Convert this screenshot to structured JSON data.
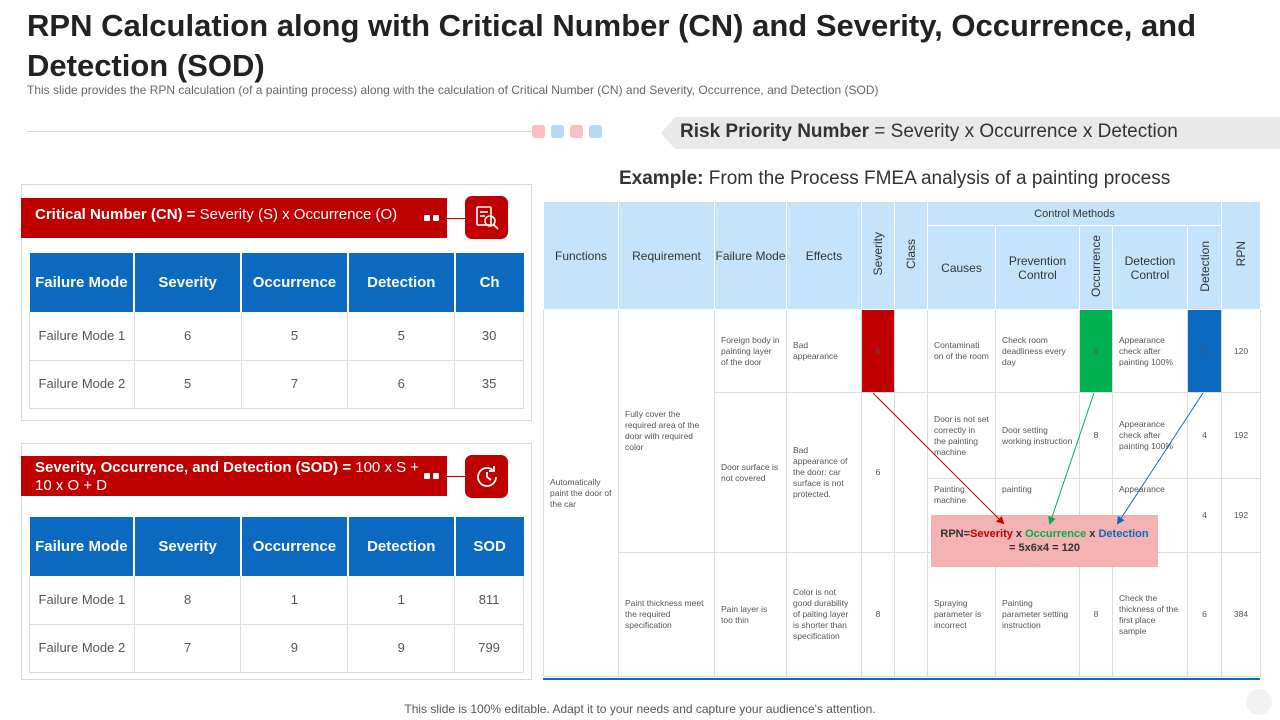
{
  "title": "RPN Calculation along with Critical Number (CN) and Severity, Occurrence, and Detection (SOD)",
  "subtitle": "This slide provides  the RPN calculation  (of a painting process)  along with the calculation of Critical Number  (CN)  and Severity,  Occurrence,  and Detection (SOD)",
  "dots": [
    "#f8c0c4",
    "#b8d8f4",
    "#f8c0c4",
    "#b8d8f4"
  ],
  "rpn_banner": {
    "bold": "Risk Priority Number",
    "rest": " = Severity x Occurrence x Detection"
  },
  "example": {
    "bold": "Example:",
    "rest": " From the Process FMEA analysis of a painting process"
  },
  "cn": {
    "bar_bold": "Critical Number (CN) =",
    "bar_rest": " Severity (S) x Occurrence (O)",
    "icon": "analysis-icon",
    "headers": [
      "Failure Mode",
      "Severity",
      "Occurrence",
      "Detection",
      "Ch"
    ],
    "rows": [
      [
        "Failure Mode 1",
        "6",
        "5",
        "5",
        "30"
      ],
      [
        "Failure Mode 2",
        "5",
        "7",
        "6",
        "35"
      ]
    ]
  },
  "sod": {
    "bar_bold": "Severity, Occurrence, and Detection (SOD) =",
    "bar_rest": " 100 x S + 10 x O + D",
    "icon": "refresh-clock-icon",
    "headers": [
      "Failure Mode",
      "Severity",
      "Occurrence",
      "Detection",
      "SOD"
    ],
    "rows": [
      [
        "Failure Mode 1",
        "8",
        "1",
        "1",
        "811"
      ],
      [
        "Failure Mode 2",
        "7",
        "9",
        "9",
        "799"
      ]
    ]
  },
  "fmea": {
    "headers": {
      "functions": "Functions",
      "requirement": "Requirement",
      "failure_mode": "Failure Mode",
      "effects": "Effects",
      "severity": "Severity",
      "class": "Class",
      "control_methods": "Control Methods",
      "causes": "Causes",
      "prevention_control": "Prevention Control",
      "occurrence": "Occurrence",
      "detection_control": "Detection Control",
      "detection": "Detection",
      "rpn": "RPN"
    },
    "function_text": "Automatically paint the door of the car",
    "req_1": "Fully cover the required area of the door with required color",
    "req_2": "Paint thickness meet the required specification",
    "fm_1": "Foreign body in painting layer of the door",
    "fm_2": "Door surface is not covered",
    "fm_3": "Pain layer is too thin",
    "eff_1": "Bad appearance",
    "eff_2": "Bad appearance of the door: car surface is not protected.",
    "eff_3": "Color is not good durability of paiting layer is shorter than specification",
    "sev_1": "5",
    "sev_2": "6",
    "sev_3": "8",
    "row1": {
      "cause": "Contaminati on of the room",
      "prev": "Check room deadliness every day",
      "occ": "6",
      "det_ctrl": "Appearance check after painting 100%",
      "det": "4",
      "rpn": "120"
    },
    "row2": {
      "cause": "Door is not set correctly in the painting machine",
      "prev": "Door setting working instruction",
      "occ": "8",
      "det_ctrl": "Appearance check after painting 100%",
      "det": "4",
      "rpn": "192"
    },
    "row3": {
      "cause": "Painting machine",
      "prev": "painting",
      "occ": "",
      "det_ctrl": "Appearance",
      "det": "4",
      "rpn": "192"
    },
    "row4": {
      "cause": "Spraying parameter is incorrect",
      "prev": "Painting parameter setting instruction",
      "occ": "8",
      "det_ctrl": "Check the thickness of the first place sample",
      "det": "6",
      "rpn": "384"
    }
  },
  "formula": {
    "prefix": "RPN=",
    "severity": "Severity",
    "x1": " x ",
    "occurrence": "Occurrence",
    "x2": " x ",
    "detection": "Detection",
    "line2": "= 5x6x4 = 120",
    "colors": {
      "severity": "#c00000",
      "occurrence": "#00b050",
      "detection": "#0b6ac0"
    }
  },
  "footer": "This slide is 100% editable. Adapt it to your needs and capture your audience's attention."
}
